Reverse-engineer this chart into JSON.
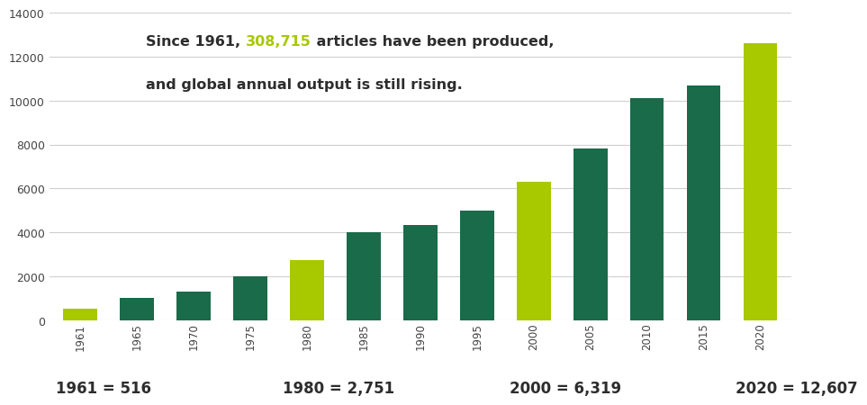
{
  "years": [
    "1961",
    "1965",
    "1970",
    "1975",
    "1980",
    "1985",
    "1990",
    "1995",
    "2000",
    "2005",
    "2010",
    "2015",
    "2020"
  ],
  "values": [
    516,
    1000,
    1300,
    2000,
    2751,
    4000,
    4350,
    5000,
    6319,
    7800,
    10100,
    10700,
    12607
  ],
  "bar_colors": [
    "#a8c800",
    "#1a6b4a",
    "#1a6b4a",
    "#1a6b4a",
    "#a8c800",
    "#1a6b4a",
    "#1a6b4a",
    "#1a6b4a",
    "#a8c800",
    "#1a6b4a",
    "#1a6b4a",
    "#1a6b4a",
    "#a8c800"
  ],
  "ylim": [
    0,
    14000
  ],
  "yticks": [
    0,
    2000,
    4000,
    6000,
    8000,
    10000,
    12000,
    14000
  ],
  "annotation_color_green": "#a8c800",
  "annotation_color_dark": "#2d2d2d",
  "footer_labels": [
    "1961 = 516",
    "1980 = 2,751",
    "2000 = 6,319",
    "2020 = 12,607"
  ],
  "background_color": "#ffffff",
  "grid_color": "#d0d0d0",
  "tick_label_color": "#444444",
  "bar_width": 0.6,
  "figwidth": 8.99,
  "figheight": 4.55,
  "annotation_fontsize": 11.5,
  "footer_fontsize": 12
}
